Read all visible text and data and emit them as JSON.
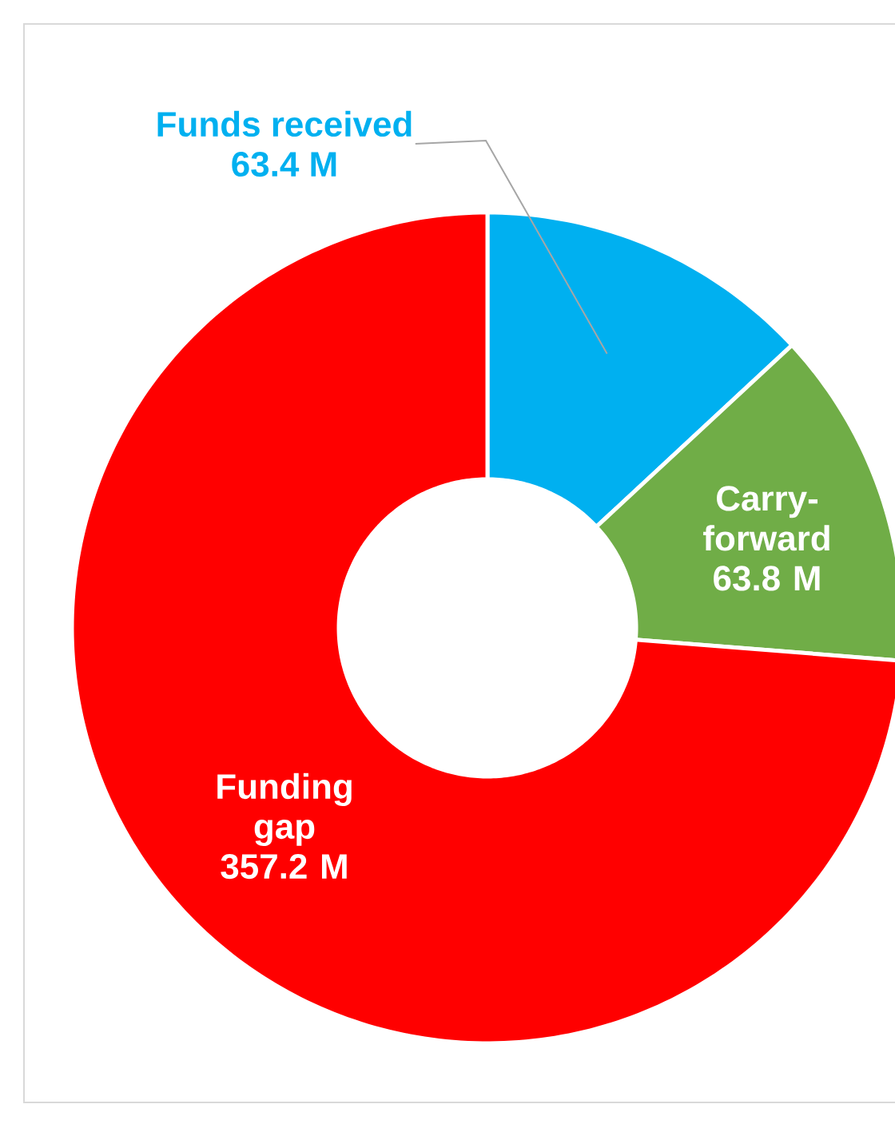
{
  "chart_data": {
    "type": "donut",
    "categories": [
      "Funds received",
      "Carry-forward",
      "Funding gap"
    ],
    "values": [
      63.4,
      63.8,
      357.2
    ],
    "colors": [
      "#00b0f0",
      "#70ad47",
      "#ff0000"
    ],
    "value_labels": [
      "63.4 M",
      "63.8 M",
      "357.2 M"
    ]
  }
}
